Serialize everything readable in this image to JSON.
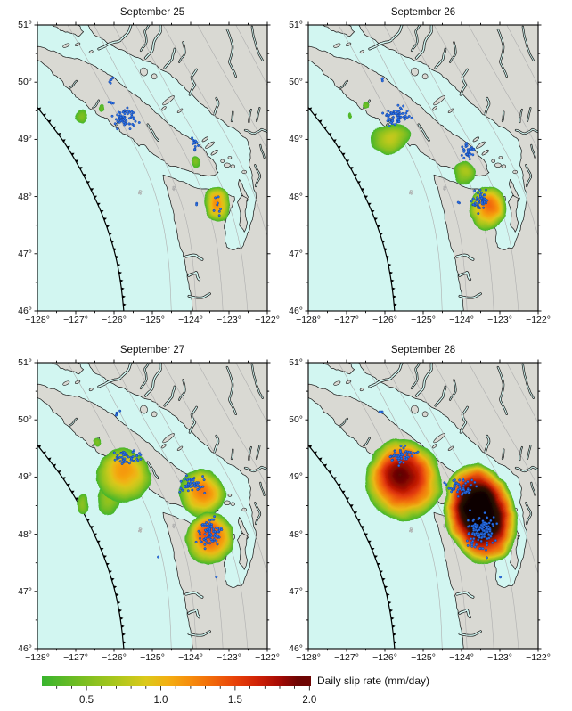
{
  "figure": {
    "type": "map-grid",
    "description": "Four daily maps of slow-slip rate and tremor, Cascadia / Vancouver Island region",
    "panels": [
      {
        "title": "September 25",
        "slip_patches": [
          {
            "lon": -126.86,
            "lat": 49.4,
            "rx": 0.13,
            "ry": 0.12,
            "rot": -30,
            "peak": 0.5
          },
          {
            "lon": -126.34,
            "lat": 49.56,
            "rx": 0.07,
            "ry": 0.06,
            "rot": 0,
            "peak": 0.4
          },
          {
            "lon": -123.88,
            "lat": 48.6,
            "rx": 0.12,
            "ry": 0.1,
            "rot": -20,
            "peak": 0.5
          },
          {
            "lon": -123.32,
            "lat": 47.86,
            "rx": 0.34,
            "ry": 0.3,
            "rot": -15,
            "peak": 1.2,
            "fy": 0.45
          }
        ],
        "tremor_clusters": [
          {
            "lon": -126.07,
            "lat": 50.05,
            "n": 6,
            "sx": 0.06,
            "sy": 0.05
          },
          {
            "lon": -126.06,
            "lat": 49.62,
            "n": 4,
            "sx": 0.05,
            "sy": 0.04
          },
          {
            "lon": -125.7,
            "lat": 49.37,
            "n": 58,
            "sx": 0.26,
            "sy": 0.12
          },
          {
            "lon": -123.9,
            "lat": 48.9,
            "n": 14,
            "sx": 0.09,
            "sy": 0.09
          },
          {
            "lon": -123.33,
            "lat": 47.85,
            "n": 8,
            "sx": 0.08,
            "sy": 0.12
          },
          {
            "lon": -123.85,
            "lat": 47.87,
            "n": 2,
            "sx": 0.03,
            "sy": 0.02
          }
        ]
      },
      {
        "title": "September 26",
        "slip_patches": [
          {
            "lon": -126.92,
            "lat": 49.44,
            "rx": 0.05,
            "ry": 0.045,
            "rot": 0,
            "peak": 0.35
          },
          {
            "lon": -126.5,
            "lat": 49.6,
            "rx": 0.09,
            "ry": 0.07,
            "rot": 0,
            "peak": 0.45
          },
          {
            "lon": -125.85,
            "lat": 49.02,
            "rx": 0.53,
            "ry": 0.26,
            "rot": -12,
            "peak": 0.8
          },
          {
            "lon": -123.93,
            "lat": 48.42,
            "rx": 0.28,
            "ry": 0.22,
            "rot": 0,
            "peak": 0.7,
            "fy": 0.45
          },
          {
            "lon": -123.3,
            "lat": 47.8,
            "rx": 0.47,
            "ry": 0.37,
            "rot": 8,
            "peak": 1.35,
            "fy": 0.42
          }
        ],
        "tremor_clusters": [
          {
            "lon": -126.05,
            "lat": 50.07,
            "n": 3,
            "sx": 0.04,
            "sy": 0.03
          },
          {
            "lon": -125.7,
            "lat": 49.4,
            "n": 60,
            "sx": 0.26,
            "sy": 0.12
          },
          {
            "lon": -123.85,
            "lat": 48.8,
            "n": 32,
            "sx": 0.12,
            "sy": 0.11
          },
          {
            "lon": -123.52,
            "lat": 47.93,
            "n": 50,
            "sx": 0.17,
            "sy": 0.13
          },
          {
            "lon": -124.05,
            "lat": 47.9,
            "n": 2,
            "sx": 0.03,
            "sy": 0.03
          }
        ]
      },
      {
        "title": "September 27",
        "slip_patches": [
          {
            "lon": -126.45,
            "lat": 49.63,
            "rx": 0.095,
            "ry": 0.07,
            "rot": 0,
            "peak": 0.5
          },
          {
            "lon": -126.82,
            "lat": 48.52,
            "rx": 0.16,
            "ry": 0.17,
            "rot": 0,
            "peak": 0.55
          },
          {
            "lon": -126.15,
            "lat": 48.62,
            "rx": 0.3,
            "ry": 0.28,
            "rot": 0,
            "peak": 0.6
          },
          {
            "lon": -125.75,
            "lat": 49.02,
            "rx": 0.7,
            "ry": 0.48,
            "rot": -18,
            "peak": 1.15,
            "fx": 0.55,
            "fy": 0.38
          },
          {
            "lon": -123.7,
            "lat": 48.72,
            "rx": 0.6,
            "ry": 0.42,
            "rot": -15,
            "peak": 1.3,
            "fy": 0.45
          },
          {
            "lon": -123.5,
            "lat": 47.92,
            "rx": 0.63,
            "ry": 0.47,
            "rot": 5,
            "peak": 1.45,
            "fx": 0.48,
            "fy": 0.38
          }
        ],
        "tremor_clusters": [
          {
            "lon": -125.92,
            "lat": 50.1,
            "n": 4,
            "sx": 0.05,
            "sy": 0.04
          },
          {
            "lon": -125.65,
            "lat": 49.33,
            "n": 42,
            "sx": 0.28,
            "sy": 0.1
          },
          {
            "lon": -123.95,
            "lat": 48.88,
            "n": 48,
            "sx": 0.27,
            "sy": 0.11
          },
          {
            "lon": -123.5,
            "lat": 48.02,
            "n": 75,
            "sx": 0.24,
            "sy": 0.17
          },
          {
            "lon": -124.85,
            "lat": 47.6,
            "n": 1,
            "sx": 0.02,
            "sy": 0.02
          },
          {
            "lon": -123.35,
            "lat": 47.25,
            "n": 1,
            "sx": 0.02,
            "sy": 0.02
          }
        ]
      },
      {
        "title": "September 28",
        "slip_patches": [
          {
            "lon": -125.5,
            "lat": 48.95,
            "rx": 1.0,
            "ry": 0.72,
            "rot": -12,
            "peak": 1.95,
            "fx": 0.47,
            "fy": 0.42
          },
          {
            "lon": -123.5,
            "lat": 48.35,
            "rx": 0.93,
            "ry": 0.9,
            "rot": -14,
            "peak": 2.5,
            "fy": 0.45
          }
        ],
        "tremor_clusters": [
          {
            "lon": -126.1,
            "lat": 50.14,
            "n": 3,
            "sx": 0.04,
            "sy": 0.04
          },
          {
            "lon": -125.55,
            "lat": 49.38,
            "n": 50,
            "sx": 0.28,
            "sy": 0.11
          },
          {
            "lon": -124.05,
            "lat": 48.8,
            "n": 55,
            "sx": 0.27,
            "sy": 0.13
          },
          {
            "lon": -123.45,
            "lat": 48.05,
            "n": 115,
            "sx": 0.27,
            "sy": 0.21
          },
          {
            "lon": -123.35,
            "lat": 47.6,
            "n": 1,
            "sx": 0.02,
            "sy": 0.02
          },
          {
            "lon": -122.97,
            "lat": 47.25,
            "n": 1,
            "sx": 0.02,
            "sy": 0.02
          }
        ]
      }
    ],
    "axes": {
      "x_tick_labels": [
        "−128°",
        "−127°",
        "−126°",
        "−125°",
        "−124°",
        "−123°",
        "−122°"
      ],
      "x_tick_values": [
        -128,
        -127,
        -126,
        -125,
        -124,
        -123,
        -122
      ],
      "y_tick_labels": [
        "51°",
        "50°",
        "49°",
        "48°",
        "47°",
        "46°"
      ],
      "y_tick_values": [
        51,
        50,
        49,
        48,
        47,
        46
      ],
      "lon_min": -128,
      "lon_max": -122,
      "lat_min": 46,
      "lat_max": 51
    },
    "colorbar": {
      "title": "Daily slip rate (mm/day)",
      "tick_labels": [
        "0.5",
        "1.0",
        "1.5",
        "2.0"
      ],
      "tick_values": [
        0.5,
        1.0,
        1.5,
        2.0
      ],
      "value_min": 0.2,
      "value_max": 2.01,
      "minor_tick_step": 0.1,
      "palette": [
        [
          0.2,
          "#38b42e"
        ],
        [
          0.45,
          "#74bd22"
        ],
        [
          0.7,
          "#abc71d"
        ],
        [
          0.9,
          "#dcc91a"
        ],
        [
          1.05,
          "#f3ae12"
        ],
        [
          1.2,
          "#f68d0c"
        ],
        [
          1.35,
          "#f1680a"
        ],
        [
          1.5,
          "#e84209"
        ],
        [
          1.65,
          "#d02206"
        ],
        [
          1.8,
          "#a50a04"
        ],
        [
          1.92,
          "#6e0503"
        ],
        [
          2.02,
          "#2e0b04"
        ],
        [
          2.3,
          "#0b0402"
        ]
      ]
    },
    "map": {
      "contour_labels": [
        {
          "text": "30",
          "lon": -125.3,
          "lat": 48.03,
          "rot": -75
        },
        {
          "text": "40",
          "lon": -124.42,
          "lat": 48.1,
          "rot": -75
        }
      ],
      "colors": {
        "ocean": "#d2f6f1",
        "land": "#d9d9d3",
        "coast": "#161616",
        "contour": "#aeaeae",
        "contour_label": "#9a9a9a",
        "trench": "#000000",
        "tremor_fill": "#2a72e8",
        "tremor_stroke": "#123c96",
        "frame": "#000000"
      }
    }
  }
}
